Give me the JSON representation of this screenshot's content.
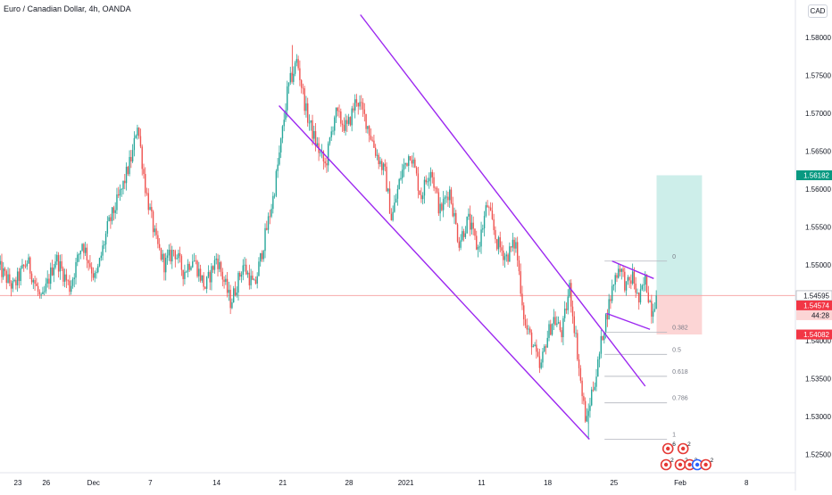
{
  "header": {
    "title": "Euro / Canadian Dollar, 4h, OANDA",
    "currency": "CAD"
  },
  "colors": {
    "up": "#26a69a",
    "down": "#ef5350",
    "channel": "#9c27f0",
    "fib": "#b2b5be",
    "target_zone": "#cdeeea",
    "stop_zone": "#fcd5d5",
    "price_line": "#f7a9a9",
    "axis_text": "#131722"
  },
  "chart_data": {
    "type": "candlestick",
    "symbol": "EURCAD",
    "interval": "4h",
    "ylim": [
      1.521,
      1.5855
    ],
    "y_ticks": [
      "1.58000",
      "1.57500",
      "1.57000",
      "1.56500",
      "1.56000",
      "1.55500",
      "1.55000",
      "1.54500",
      "1.54000",
      "1.53500",
      "1.53000",
      "1.52500"
    ],
    "x_ticks": [
      {
        "label": "23",
        "day": 0
      },
      {
        "label": "26",
        "day": 3
      },
      {
        "label": "Dec",
        "day": 8
      },
      {
        "label": "7",
        "day": 14
      },
      {
        "label": "14",
        "day": 21
      },
      {
        "label": "21",
        "day": 28
      },
      {
        "label": "28",
        "day": 35
      },
      {
        "label": "2021",
        "day": 41
      },
      {
        "label": "11",
        "day": 49
      },
      {
        "label": "18",
        "day": 56
      },
      {
        "label": "25",
        "day": 63
      },
      {
        "label": "Feb",
        "day": 70
      },
      {
        "label": "8",
        "day": 77
      }
    ],
    "price_path": [
      [
        -2.2,
        1.55
      ],
      [
        -0.5,
        1.547
      ],
      [
        1.0,
        1.5505
      ],
      [
        2.5,
        1.545
      ],
      [
        4.0,
        1.551
      ],
      [
        5.5,
        1.547
      ],
      [
        6.8,
        1.553
      ],
      [
        8.2,
        1.548
      ],
      [
        9.5,
        1.555
      ],
      [
        11.0,
        1.56
      ],
      [
        12.2,
        1.565
      ],
      [
        12.6,
        1.569
      ],
      [
        13.5,
        1.56
      ],
      [
        14.6,
        1.553
      ],
      [
        15.5,
        1.55
      ],
      [
        16.5,
        1.552
      ],
      [
        17.5,
        1.549
      ],
      [
        18.5,
        1.551
      ],
      [
        19.8,
        1.547
      ],
      [
        21.0,
        1.551
      ],
      [
        22.5,
        1.545
      ],
      [
        23.8,
        1.55
      ],
      [
        25.0,
        1.547
      ],
      [
        26.0,
        1.553
      ],
      [
        27.0,
        1.559
      ],
      [
        27.8,
        1.566
      ],
      [
        28.5,
        1.573
      ],
      [
        29.5,
        1.577
      ],
      [
        30.5,
        1.57
      ],
      [
        31.5,
        1.566
      ],
      [
        32.5,
        1.563
      ],
      [
        33.5,
        1.57
      ],
      [
        34.8,
        1.568
      ],
      [
        35.8,
        1.572
      ],
      [
        36.8,
        1.569
      ],
      [
        37.8,
        1.565
      ],
      [
        38.8,
        1.562
      ],
      [
        39.5,
        1.556
      ],
      [
        40.5,
        1.562
      ],
      [
        41.5,
        1.565
      ],
      [
        42.6,
        1.559
      ],
      [
        43.6,
        1.563
      ],
      [
        44.6,
        1.557
      ],
      [
        45.6,
        1.56
      ],
      [
        46.6,
        1.553
      ],
      [
        47.6,
        1.556
      ],
      [
        48.6,
        1.552
      ],
      [
        49.6,
        1.558
      ],
      [
        50.6,
        1.553
      ],
      [
        51.6,
        1.551
      ],
      [
        52.6,
        1.553
      ],
      [
        53.6,
        1.542
      ],
      [
        54.3,
        1.54
      ],
      [
        55.2,
        1.536
      ],
      [
        55.8,
        1.54
      ],
      [
        56.6,
        1.543
      ],
      [
        57.5,
        1.541
      ],
      [
        58.3,
        1.547
      ],
      [
        59.0,
        1.54
      ],
      [
        59.6,
        1.533
      ],
      [
        60.1,
        1.529
      ],
      [
        60.6,
        1.533
      ],
      [
        61.2,
        1.536
      ],
      [
        61.8,
        1.541
      ],
      [
        62.5,
        1.545
      ],
      [
        63.0,
        1.548
      ],
      [
        63.6,
        1.55
      ],
      [
        64.3,
        1.547
      ],
      [
        65.0,
        1.5485
      ],
      [
        65.6,
        1.545
      ],
      [
        66.3,
        1.548
      ],
      [
        67.0,
        1.544
      ],
      [
        67.5,
        1.546
      ]
    ],
    "price_high": 1.579,
    "price_low": 1.527,
    "last_price": 1.54595,
    "tags": [
      {
        "label": "1.56182",
        "value": 1.56182,
        "style": "target"
      },
      {
        "label": "1.54595",
        "value": 1.54595,
        "style": "current"
      },
      {
        "label": "1.54574",
        "value": 1.54574,
        "style": "stop"
      },
      {
        "label": "44:28",
        "value": 1.5447,
        "style": "countdown"
      },
      {
        "label": "1.54082",
        "value": 1.54082,
        "style": "stop"
      }
    ],
    "fib_levels": [
      {
        "label": "0",
        "value": 1.5505
      },
      {
        "label": "0.382",
        "value": 1.5411
      },
      {
        "label": "0.5",
        "value": 1.5382
      },
      {
        "label": "0.618",
        "value": 1.5353
      },
      {
        "label": "0.786",
        "value": 1.5318
      },
      {
        "label": "1",
        "value": 1.527
      }
    ],
    "channel_lines": [
      {
        "name": "upper",
        "from": [
          36.2,
          1.583
        ],
        "to": [
          66.3,
          1.534
        ]
      },
      {
        "name": "lower",
        "from": [
          27.6,
          1.571
        ],
        "to": [
          60.4,
          1.527
        ]
      },
      {
        "name": "wedge-top",
        "from": [
          62.8,
          1.5505
        ],
        "to": [
          67.2,
          1.5482
        ]
      },
      {
        "name": "wedge-bottom",
        "from": [
          62.2,
          1.5436
        ],
        "to": [
          66.8,
          1.5415
        ]
      }
    ],
    "position": {
      "entry": 1.54595,
      "target": 1.56182,
      "stop": 1.54082,
      "start_day": 67.5,
      "end_day": 72.3
    },
    "events": [
      {
        "day": 68.7,
        "row": 1,
        "count": "6",
        "kind": "ca"
      },
      {
        "day": 70.3,
        "row": 1,
        "count": "2",
        "kind": "ca"
      },
      {
        "day": 68.5,
        "row": 2,
        "count": "2",
        "kind": "ca"
      },
      {
        "day": 70.0,
        "row": 2,
        "count": "2",
        "kind": "ca"
      },
      {
        "day": 71.0,
        "row": 2,
        "count": "3",
        "kind": "ca"
      },
      {
        "day": 71.8,
        "row": 2,
        "count": "",
        "kind": "eu"
      },
      {
        "day": 72.7,
        "row": 2,
        "count": "2",
        "kind": "ca"
      }
    ]
  }
}
